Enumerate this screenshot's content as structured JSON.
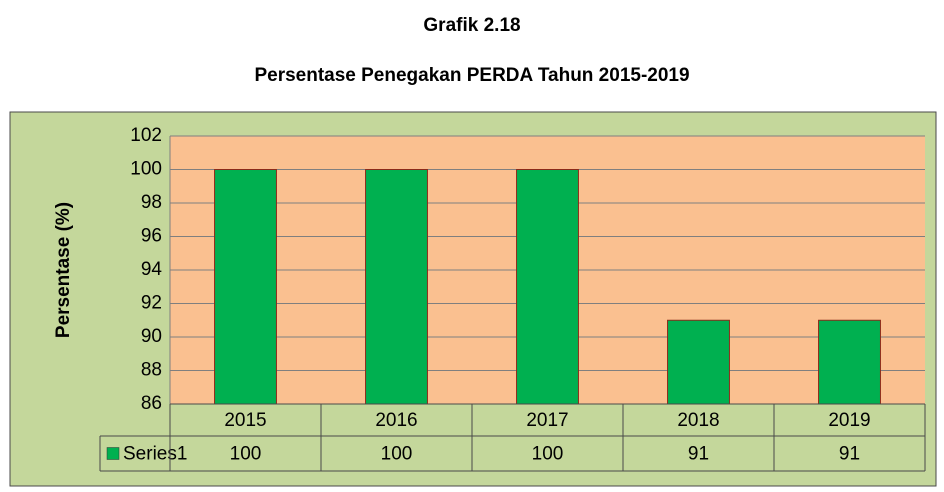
{
  "chart_data": {
    "type": "bar",
    "title": "Grafik 2.18",
    "subtitle": "Persentase Penegakan PERDA Tahun 2015-2019",
    "y_label": "Persentase (%)",
    "categories": [
      "2015",
      "2016",
      "2017",
      "2018",
      "2019"
    ],
    "series": [
      {
        "name": "Series1",
        "color": "#00b050",
        "values": [
          100,
          100,
          100,
          91,
          91
        ]
      }
    ],
    "ylim": [
      86,
      102
    ],
    "yticks": [
      86,
      88,
      90,
      92,
      94,
      96,
      98,
      100,
      102
    ],
    "grid": true
  }
}
